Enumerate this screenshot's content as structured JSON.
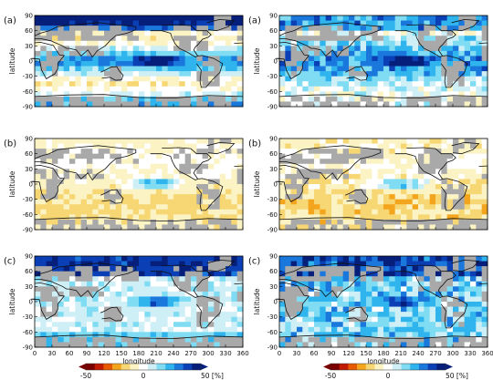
{
  "chart_data": {
    "type": "heatmap",
    "description_units": "percent",
    "colorbar": {
      "ticks": [
        "-50",
        "0",
        "50 [%]"
      ],
      "range": [
        -50,
        50
      ],
      "colors": [
        "#7a0000",
        "#c01a00",
        "#e85a00",
        "#f4a51e",
        "#f7d774",
        "#fbf3c4",
        "#ffffff",
        "#cfeff7",
        "#7fdcf2",
        "#2fb4ee",
        "#1a78dd",
        "#0b3fb6",
        "#061f7a"
      ]
    },
    "xlabel": "longitude",
    "ylabel": "latitude",
    "xticks": [
      "0",
      "30",
      "60",
      "90",
      "120",
      "150",
      "180",
      "210",
      "240",
      "270",
      "300",
      "330",
      "360"
    ],
    "yticks": [
      "90",
      "60",
      "30",
      "0",
      "-30",
      "-60",
      "-90"
    ],
    "xlim": [
      0,
      360
    ],
    "ylim": [
      -90,
      90
    ],
    "panels": [
      {
        "label": "(a)",
        "column": 1,
        "row": 1
      },
      {
        "label": "(a)",
        "column": 2,
        "row": 1
      },
      {
        "label": "(b)",
        "column": 1,
        "row": 2
      },
      {
        "label": "(b)",
        "column": 2,
        "row": 2
      },
      {
        "label": "(c)",
        "column": 1,
        "row": 3
      },
      {
        "label": "(c)",
        "column": 2,
        "row": 3
      }
    ]
  }
}
